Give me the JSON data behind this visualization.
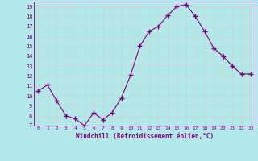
{
  "x": [
    0,
    1,
    2,
    3,
    4,
    5,
    6,
    7,
    8,
    9,
    10,
    11,
    12,
    13,
    14,
    15,
    16,
    17,
    18,
    19,
    20,
    21,
    22,
    23
  ],
  "y": [
    10.5,
    11.1,
    9.5,
    8.0,
    7.7,
    7.0,
    8.3,
    7.6,
    8.3,
    9.8,
    12.1,
    15.0,
    16.5,
    17.0,
    18.1,
    19.0,
    19.2,
    18.0,
    16.5,
    14.8,
    14.0,
    13.0,
    12.2,
    12.2
  ],
  "line_color": "#800080",
  "marker": "+",
  "marker_size": 4,
  "bg_color": "#b2e8e8",
  "grid_color": "#c8d8d8",
  "xlabel": "Windchill (Refroidissement éolien,°C)",
  "xlabel_color": "#800080",
  "tick_color": "#800080",
  "ylim": [
    7,
    19.5
  ],
  "xlim": [
    -0.5,
    23.5
  ],
  "yticks": [
    7,
    8,
    9,
    10,
    11,
    12,
    13,
    14,
    15,
    16,
    17,
    18,
    19
  ],
  "xticks": [
    0,
    1,
    2,
    3,
    4,
    5,
    6,
    7,
    8,
    9,
    10,
    11,
    12,
    13,
    14,
    15,
    16,
    17,
    18,
    19,
    20,
    21,
    22,
    23
  ]
}
